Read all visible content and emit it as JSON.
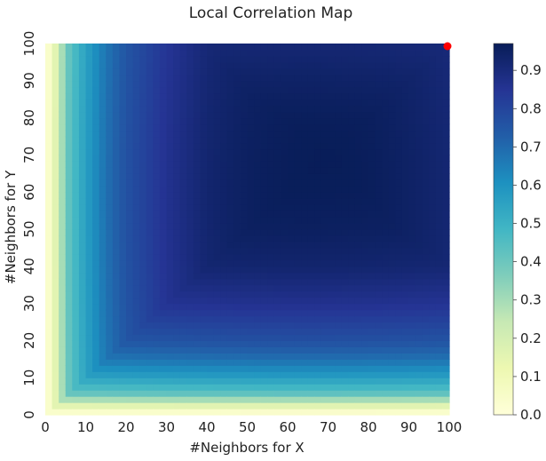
{
  "chart_data": {
    "type": "heatmap",
    "title": "Local Correlation Map",
    "xlabel": "#Neighbors for X",
    "ylabel": "#Neighbors for Y",
    "x_ticks": [
      "0",
      "10",
      "20",
      "30",
      "40",
      "50",
      "60",
      "70",
      "80",
      "90",
      "100"
    ],
    "y_ticks": [
      "0",
      "10",
      "20",
      "30",
      "40",
      "50",
      "60",
      "70",
      "80",
      "90",
      "100"
    ],
    "xlim": [
      0,
      100
    ],
    "ylim": [
      0,
      100
    ],
    "grid": 100,
    "colormap": "YlGnBu",
    "color_range": [
      0.0,
      0.97
    ],
    "colorbar_ticks": [
      "0.0",
      "0.1",
      "0.2",
      "0.3",
      "0.4",
      "0.5",
      "0.6",
      "0.7",
      "0.8",
      "0.9"
    ],
    "max_value": 0.97,
    "peak_region": {
      "x": [
        40,
        80
      ],
      "y": [
        35,
        80
      ]
    },
    "highlight_point": {
      "x": 100,
      "y": 100,
      "color": "#ff0000"
    },
    "surface": {
      "axis_profile": [
        [
          0,
          0.02
        ],
        [
          1,
          0.05
        ],
        [
          2,
          0.12
        ],
        [
          4,
          0.3
        ],
        [
          6,
          0.45
        ],
        [
          10,
          0.58
        ],
        [
          15,
          0.7
        ],
        [
          20,
          0.78
        ],
        [
          30,
          0.87
        ],
        [
          40,
          0.93
        ],
        [
          50,
          0.955
        ],
        [
          60,
          0.965
        ],
        [
          70,
          0.97
        ],
        [
          80,
          0.965
        ],
        [
          90,
          0.95
        ],
        [
          100,
          0.93
        ]
      ],
      "descriptions": "value ~ f(min(x,y)) rising from 0 at axes to ~0.97 in center"
    }
  }
}
